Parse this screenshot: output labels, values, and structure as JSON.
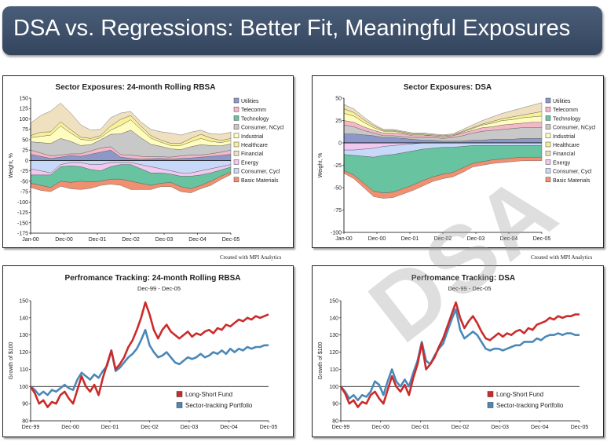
{
  "header": {
    "title": "DSA vs. Regressions: Better Fit, Meaningful Exposures"
  },
  "watermark": "DSA",
  "credits": {
    "left": "Created with MPI Analytics",
    "right": "Created with MPI Analytics"
  },
  "colors": {
    "Utilities": "#8e98c8",
    "Telecomm": "#f4b8c8",
    "Technology": "#68c4a0",
    "Consumer, NCycl": "#c8c8c8",
    "Industrial": "#fffcc0",
    "Healthcare": "#f8f098",
    "Financial": "#efe0c0",
    "Energy": "#f0c8f0",
    "Consumer, Cycl": "#c8d8f8",
    "Basic Materials": "#f09070",
    "fund": "#cc2a2a",
    "portfolio": "#4a88b8"
  },
  "chart_data": [
    {
      "type": "area",
      "title": "Sector Exposures: 24-month Rolling RBSA",
      "ylabel": "Weight, %",
      "xticks": [
        "Jan-00",
        "Dec-00",
        "Dec-01",
        "Dec-02",
        "Dec-03",
        "Dec-04",
        "Dec-05"
      ],
      "yticks": [
        150,
        125,
        100,
        75,
        50,
        25,
        0,
        -25,
        -50,
        -75,
        -100,
        -125,
        -150,
        -175
      ],
      "ylim": [
        -175,
        150
      ],
      "legend": [
        "Utilities",
        "Telecomm",
        "Technology",
        "Consumer, NCycl",
        "Industrial",
        "Healthcare",
        "Financial",
        "Energy",
        "Consumer, Cycl",
        "Basic Materials"
      ],
      "legend_placement": "right",
      "series": [
        {
          "name": "Utilities",
          "sign": 1,
          "values": [
            15,
            10,
            5,
            8,
            12,
            10,
            15,
            20,
            25,
            8,
            5,
            3,
            4,
            5,
            3,
            5,
            6,
            8,
            10,
            12,
            15
          ]
        },
        {
          "name": "Telecomm",
          "sign": 1,
          "values": [
            10,
            8,
            6,
            5,
            4,
            6,
            8,
            10,
            8,
            6,
            8,
            7,
            5,
            4,
            5,
            6,
            7,
            5,
            6,
            8,
            10
          ]
        },
        {
          "name": "Consumer, NCycl",
          "sign": 1,
          "values": [
            20,
            25,
            30,
            40,
            30,
            20,
            15,
            20,
            30,
            50,
            60,
            45,
            30,
            25,
            20,
            15,
            20,
            25,
            20,
            15,
            15
          ]
        },
        {
          "name": "Industrial",
          "sign": 1,
          "values": [
            10,
            15,
            20,
            30,
            20,
            15,
            10,
            5,
            10,
            20,
            25,
            20,
            15,
            10,
            8,
            10,
            12,
            15,
            10,
            8,
            8
          ]
        },
        {
          "name": "Healthcare",
          "sign": 1,
          "values": [
            5,
            10,
            8,
            10,
            8,
            5,
            5,
            5,
            10,
            15,
            10,
            8,
            6,
            5,
            5,
            5,
            8,
            10,
            8,
            5,
            5
          ]
        },
        {
          "name": "Financial",
          "sign": 1,
          "values": [
            30,
            40,
            50,
            45,
            40,
            30,
            20,
            15,
            20,
            15,
            10,
            10,
            15,
            20,
            25,
            20,
            15,
            10,
            10,
            15,
            15
          ]
        },
        {
          "name": "Consumer, Cycl",
          "sign": -1,
          "values": [
            20,
            25,
            30,
            10,
            5,
            5,
            10,
            10,
            5,
            5,
            5,
            10,
            15,
            20,
            25,
            30,
            30,
            25,
            20,
            15,
            10
          ]
        },
        {
          "name": "Energy",
          "sign": -1,
          "values": [
            15,
            10,
            5,
            5,
            8,
            10,
            12,
            15,
            10,
            5,
            5,
            10,
            15,
            10,
            8,
            8,
            8,
            10,
            10,
            8,
            6
          ]
        },
        {
          "name": "Technology",
          "sign": -1,
          "values": [
            20,
            25,
            30,
            35,
            40,
            35,
            30,
            25,
            30,
            35,
            40,
            35,
            30,
            25,
            20,
            25,
            30,
            25,
            20,
            15,
            12
          ]
        },
        {
          "name": "Basic Materials",
          "sign": -1,
          "values": [
            10,
            12,
            10,
            12,
            15,
            20,
            15,
            10,
            12,
            15,
            20,
            15,
            10,
            8,
            10,
            12,
            10,
            8,
            10,
            8,
            6
          ]
        }
      ]
    },
    {
      "type": "area",
      "title": "Sector Exposures: DSA",
      "ylabel": "Weight, %",
      "xticks": [
        "Jan-00",
        "Dec-00",
        "Dec-01",
        "Dec-02",
        "Dec-03",
        "Dec-04",
        "Dec-05"
      ],
      "yticks": [
        50,
        25,
        0,
        -25,
        -50,
        -75,
        -100
      ],
      "ylim": [
        -100,
        50
      ],
      "legend": [
        "Utilities",
        "Telecomm",
        "Technology",
        "Consumer, NCycl",
        "Industrial",
        "Healthcare",
        "Financial",
        "Energy",
        "Consumer, Cycl",
        "Basic Materials"
      ],
      "legend_placement": "right",
      "series": [
        {
          "name": "Utilities",
          "sign": 1,
          "values": [
            10,
            10,
            9,
            8,
            6,
            6,
            5,
            4,
            3,
            3,
            2,
            2,
            2,
            3,
            3,
            4,
            4,
            4,
            5,
            5,
            5
          ]
        },
        {
          "name": "Consumer, NCycl",
          "sign": 1,
          "values": [
            10,
            8,
            5,
            3,
            2,
            2,
            2,
            2,
            3,
            3,
            3,
            4,
            6,
            8,
            10,
            10,
            11,
            12,
            12,
            12,
            12
          ]
        },
        {
          "name": "Telecomm",
          "sign": 1,
          "values": [
            5,
            5,
            4,
            3,
            3,
            3,
            3,
            2,
            2,
            2,
            2,
            2,
            3,
            3,
            4,
            4,
            5,
            5,
            5,
            6,
            6
          ]
        },
        {
          "name": "Industrial",
          "sign": 1,
          "values": [
            8,
            7,
            5,
            3,
            2,
            2,
            1,
            1,
            1,
            0,
            0,
            0,
            1,
            2,
            3,
            4,
            5,
            5,
            6,
            6,
            7
          ]
        },
        {
          "name": "Healthcare",
          "sign": 1,
          "values": [
            5,
            4,
            3,
            2,
            1,
            1,
            1,
            1,
            1,
            1,
            1,
            1,
            1,
            1,
            1,
            2,
            2,
            3,
            3,
            4,
            5
          ]
        },
        {
          "name": "Financial",
          "sign": 1,
          "values": [
            5,
            4,
            3,
            2,
            1,
            1,
            1,
            1,
            1,
            1,
            1,
            1,
            2,
            3,
            4,
            5,
            6,
            7,
            8,
            9,
            10
          ]
        },
        {
          "name": "Energy",
          "sign": -1,
          "values": [
            8,
            8,
            7,
            6,
            4,
            3,
            2,
            1,
            0,
            0,
            0,
            0,
            0,
            0,
            0,
            0,
            0,
            0,
            0,
            0,
            0
          ]
        },
        {
          "name": "Consumer, Cycl",
          "sign": -1,
          "values": [
            5,
            6,
            8,
            10,
            10,
            10,
            9,
            8,
            7,
            6,
            5,
            5,
            4,
            3,
            3,
            3,
            3,
            3,
            3,
            3,
            3
          ]
        },
        {
          "name": "Technology",
          "sign": -1,
          "values": [
            18,
            22,
            30,
            38,
            42,
            42,
            40,
            38,
            35,
            32,
            30,
            28,
            24,
            20,
            18,
            16,
            15,
            14,
            13,
            13,
            13
          ]
        },
        {
          "name": "Basic Materials",
          "sign": -1,
          "values": [
            3,
            4,
            5,
            6,
            6,
            6,
            6,
            6,
            6,
            5,
            5,
            5,
            5,
            4,
            4,
            4,
            4,
            4,
            4,
            4,
            4
          ]
        }
      ]
    },
    {
      "type": "line",
      "title": "Perfromance Tracking: 24-month Rolling RBSA",
      "subtitle": "Dec-99 - Dec-05",
      "ylabel": "Growth of $100",
      "xticks": [
        "Dec-99",
        "Dec-00",
        "Dec-01",
        "Dec-02",
        "Dec-03",
        "Dec-04",
        "Dec-05"
      ],
      "yticks": [
        150,
        140,
        130,
        120,
        110,
        100,
        90,
        80
      ],
      "ylim": [
        80,
        150
      ],
      "legend_placement": "bottom-right",
      "series": [
        {
          "name": "Long-Short Fund",
          "color": "fund",
          "values": [
            100,
            96,
            90,
            92,
            88,
            91,
            90,
            95,
            97,
            93,
            90,
            98,
            106,
            100,
            97,
            101,
            95,
            105,
            113,
            121,
            110,
            113,
            117,
            123,
            127,
            133,
            140,
            149,
            142,
            133,
            128,
            133,
            136,
            132,
            130,
            128,
            130,
            132,
            129,
            131,
            130,
            132,
            133,
            131,
            134,
            133,
            136,
            135,
            137,
            139,
            138,
            140,
            139,
            141,
            140,
            141,
            142
          ]
        },
        {
          "name": "Sector-tracking Portfolio",
          "color": "portfolio",
          "values": [
            100,
            98,
            95,
            97,
            95,
            98,
            97,
            99,
            101,
            99,
            98,
            104,
            108,
            106,
            104,
            107,
            105,
            109,
            112,
            121,
            109,
            111,
            114,
            117,
            119,
            122,
            127,
            133,
            124,
            120,
            117,
            118,
            120,
            117,
            114,
            113,
            115,
            117,
            116,
            117,
            119,
            117,
            118,
            120,
            119,
            121,
            119,
            122,
            120,
            122,
            121,
            123,
            122,
            123,
            123,
            124,
            124
          ]
        }
      ]
    },
    {
      "type": "line",
      "title": "Perfromance Tracking: DSA",
      "subtitle": "Dec-99 - Dec-05",
      "ylabel": "Growth of $100",
      "xticks": [
        "Dec-99",
        "Dec-00",
        "Dec-01",
        "Dec-02",
        "Dec-03",
        "Dec-04",
        "Dec-05"
      ],
      "yticks": [
        150,
        140,
        130,
        120,
        110,
        100,
        90,
        80
      ],
      "ylim": [
        80,
        150
      ],
      "legend_placement": "bottom-right",
      "series": [
        {
          "name": "Long-Short Fund",
          "color": "fund",
          "values": [
            100,
            96,
            90,
            92,
            88,
            91,
            90,
            95,
            97,
            93,
            90,
            98,
            106,
            100,
            97,
            101,
            95,
            105,
            113,
            125,
            110,
            113,
            117,
            123,
            128,
            135,
            142,
            149,
            140,
            134,
            138,
            141,
            137,
            132,
            128,
            127,
            129,
            131,
            129,
            131,
            130,
            132,
            133,
            131,
            134,
            133,
            136,
            137,
            138,
            140,
            139,
            141,
            140,
            141,
            141,
            142,
            142
          ]
        },
        {
          "name": "Sector-tracking Portfolio",
          "color": "portfolio",
          "values": [
            100,
            97,
            93,
            95,
            92,
            95,
            94,
            97,
            103,
            101,
            95,
            103,
            110,
            103,
            100,
            104,
            100,
            108,
            115,
            126,
            115,
            113,
            118,
            122,
            125,
            132,
            139,
            145,
            133,
            128,
            130,
            132,
            130,
            126,
            122,
            121,
            122,
            122,
            121,
            122,
            123,
            124,
            124,
            126,
            126,
            126,
            128,
            127,
            129,
            130,
            130,
            131,
            130,
            131,
            131,
            130,
            130
          ]
        }
      ]
    }
  ]
}
